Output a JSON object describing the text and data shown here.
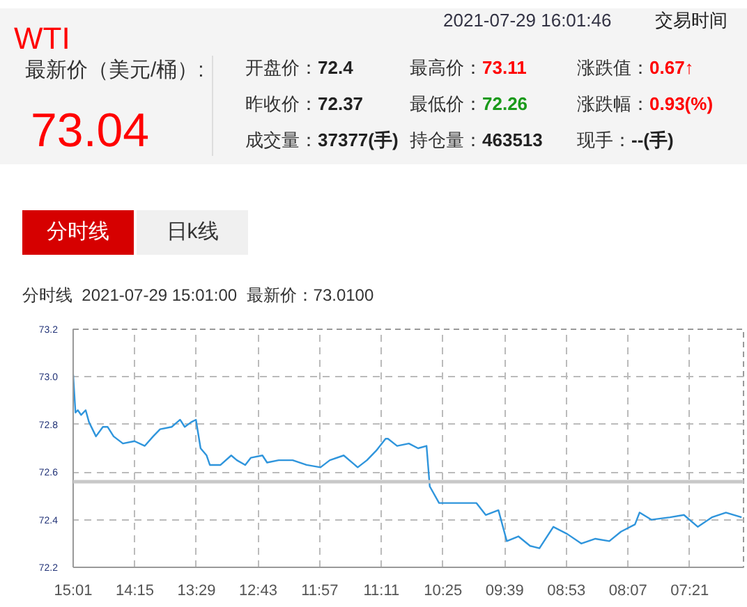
{
  "chart_data": {
    "type": "line",
    "title": "WTI",
    "subtitle": "分时线  2021-07-29 15:01:00  最新价：73.0100",
    "annotations": [
      "2021-07-29 16:01:46",
      "交易时间",
      "最新价（美元/桶）:",
      "73.04",
      "开盘价：72.4",
      "最高价：73.11",
      "涨跌值：0.67↑",
      "昨收价：72.37",
      "最低价：72.26",
      "涨跌幅：0.93(%)",
      "成交量：37377(手)",
      "持仓量：463513",
      "现手：--(手)",
      "分时线",
      "日k线"
    ],
    "series": [
      {
        "color": "#2f95dc",
        "x": [
          15.0167,
          14.988,
          14.959,
          14.918,
          14.861,
          14.82,
          14.733,
          14.647,
          14.589,
          14.514,
          14.398,
          14.254,
          14.126,
          14.022,
          13.936,
          13.791,
          13.687,
          13.629,
          13.548,
          13.49,
          13.432,
          13.357,
          13.317,
          13.184,
          13.051,
          12.981,
          12.877,
          12.808,
          12.663,
          12.605,
          12.461,
          12.287,
          12.114,
          11.941,
          11.825,
          11.652,
          11.478,
          11.363,
          11.248,
          11.131,
          11.102,
          10.988,
          10.842,
          10.727,
          10.622,
          10.582,
          10.466,
          10.32,
          10.146,
          10.001,
          9.886,
          9.728,
          9.624,
          9.48,
          9.334,
          9.218,
          9.045,
          8.872,
          8.698,
          8.522,
          8.349,
          8.204,
          8.03,
          7.973,
          7.827,
          7.595,
          7.421,
          7.248,
          7.074,
          6.899,
          6.704
        ],
        "values": [
          73.01,
          72.85,
          72.86,
          72.84,
          72.86,
          72.81,
          72.75,
          72.79,
          72.79,
          72.75,
          72.72,
          72.73,
          72.71,
          72.75,
          72.78,
          72.79,
          72.82,
          72.79,
          72.81,
          72.82,
          72.7,
          72.67,
          72.63,
          72.63,
          72.67,
          72.65,
          72.63,
          72.66,
          72.67,
          72.64,
          72.65,
          72.65,
          72.63,
          72.62,
          72.65,
          72.67,
          72.62,
          72.65,
          72.69,
          72.74,
          72.74,
          72.71,
          72.72,
          72.7,
          72.71,
          72.54,
          72.47,
          72.47,
          72.47,
          72.47,
          72.42,
          72.44,
          72.31,
          72.33,
          72.29,
          72.28,
          72.37,
          72.34,
          72.3,
          72.32,
          72.31,
          72.35,
          72.38,
          72.43,
          72.4,
          72.41,
          72.42,
          72.37,
          72.41,
          72.43,
          72.41
        ]
      }
    ],
    "xlim": [
      15.0167,
      6.68
    ],
    "xticks": [
      {
        "value": 15.0167,
        "label": "15:01"
      },
      {
        "value": 14.25,
        "label": "14:15"
      },
      {
        "value": 13.4833,
        "label": "13:29"
      },
      {
        "value": 12.7167,
        "label": "12:43"
      },
      {
        "value": 11.95,
        "label": "11:57"
      },
      {
        "value": 11.1833,
        "label": "11:11"
      },
      {
        "value": 10.4167,
        "label": "10:25"
      },
      {
        "value": 9.65,
        "label": "09:39"
      },
      {
        "value": 8.8833,
        "label": "08:53"
      },
      {
        "value": 8.1167,
        "label": "08:07"
      },
      {
        "value": 7.35,
        "label": "07:21"
      }
    ],
    "ylim": [
      72.2,
      73.2
    ],
    "yticks": [
      72.2,
      72.4,
      72.6,
      72.8,
      {
        "value": 73,
        "label": "73.0"
      },
      73.2
    ],
    "ref_lines": [
      {
        "axis": "y",
        "value": 72.56,
        "color": "#c8c8c8"
      }
    ],
    "grid": true
  }
}
